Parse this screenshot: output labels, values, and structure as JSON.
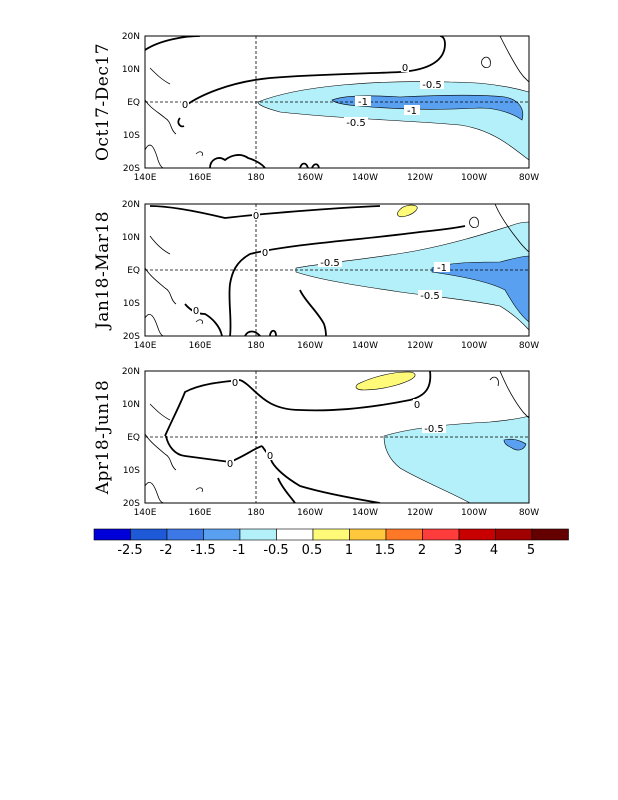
{
  "figure": {
    "x_ticks": [
      "140E",
      "160E",
      "180",
      "160W",
      "140W",
      "120W",
      "100W",
      "80W"
    ],
    "y_ticks": [
      "20N",
      "10N",
      "EQ",
      "10S",
      "20S"
    ]
  },
  "panels": [
    {
      "title": "Oct17-Dec17",
      "contour_labels": [
        "0",
        "0",
        "-0.5",
        "-1",
        "-1",
        "-0.5"
      ]
    },
    {
      "title": "Jan18-Mar18",
      "contour_labels": [
        "0",
        "0",
        "0",
        "-0.5",
        "-1",
        "-0.5"
      ]
    },
    {
      "title": "Apr18-Jun18",
      "contour_labels": [
        "0",
        "0",
        "0",
        "0",
        "-0.5"
      ]
    }
  ],
  "colorbar": {
    "labels": [
      "-2.5",
      "-2",
      "-1.5",
      "-1",
      "-0.5",
      "0.5",
      "1",
      "1.5",
      "2",
      "3",
      "4",
      "5"
    ],
    "colors": [
      "#0000d8",
      "#1e5ad8",
      "#3c78e6",
      "#5aa0f0",
      "#b4f0fa",
      "#ffffff",
      "#fffa78",
      "#ffc83c",
      "#ff7828",
      "#ff3c3c",
      "#c80000",
      "#a00000",
      "#640000"
    ]
  },
  "shading_colors": {
    "neg_0_5": "#b4f0fa",
    "neg_1": "#5aa0f0",
    "pos_0_5": "#fffa78"
  }
}
